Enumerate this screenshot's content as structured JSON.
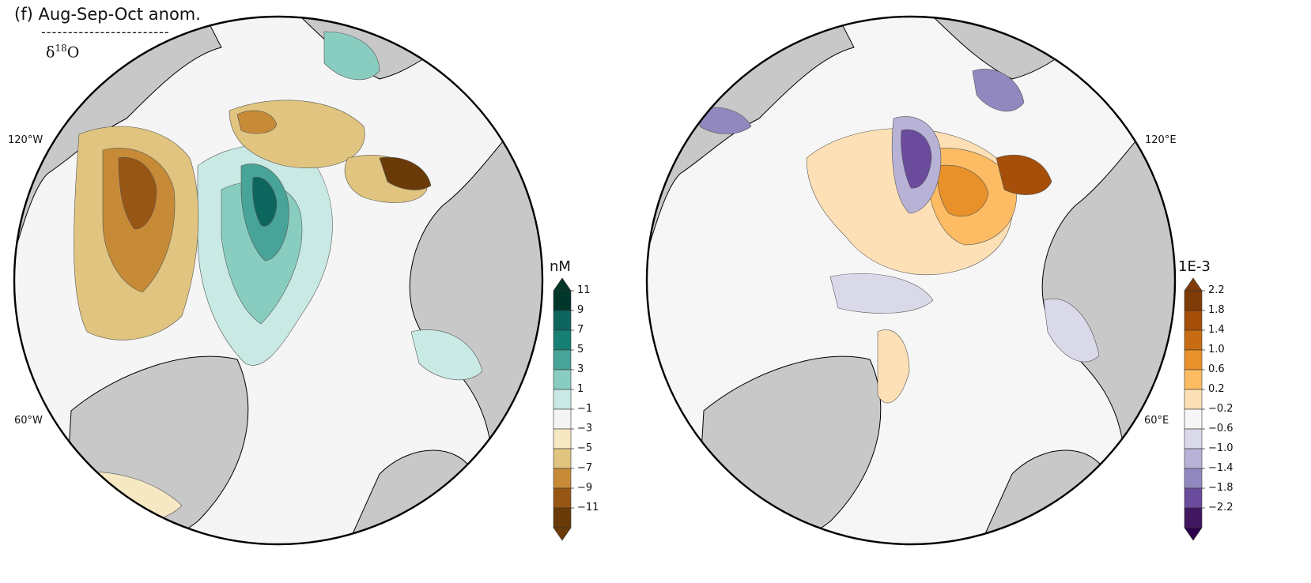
{
  "figure": {
    "panel_title": "(f) Aug-Sep-Oct anom.",
    "separator": "------------------------",
    "variable_prefix": "δ",
    "variable_sup": "18",
    "variable_suffix": "O"
  },
  "left_map": {
    "lon_labels": {
      "upper": "120°W",
      "lower": "60°W"
    },
    "colorbar": {
      "unit": "nM",
      "ticks": [
        "11",
        "9",
        "7",
        "5",
        "3",
        "1",
        "−1",
        "−3",
        "−5",
        "−7",
        "−9",
        "−11"
      ],
      "colors": [
        "#01362b",
        "#0c665e",
        "#158073",
        "#48a398",
        "#88cdc0",
        "#c9eae4",
        "#f4f4f4",
        "#f5e8c2",
        "#e0c47f",
        "#c78b38",
        "#985614",
        "#6a3a08"
      ],
      "extend_colors": {
        "top": "#01362b",
        "bottom": "#6a3a08"
      }
    }
  },
  "right_map": {
    "lon_labels": {
      "upper": "120°E",
      "lower": "60°E"
    },
    "colorbar": {
      "unit": "1E-3",
      "ticks": [
        "2.2",
        "1.8",
        "1.4",
        "1.0",
        "0.6",
        "0.2",
        "−0.2",
        "−0.6",
        "−1.0",
        "−1.4",
        "−1.8",
        "−2.2"
      ],
      "colors": [
        "#7f3b08",
        "#a64f0a",
        "#c86c13",
        "#e8912a",
        "#fdbc63",
        "#fee0b6",
        "#f6f6f6",
        "#d9d9ea",
        "#b8b2d6",
        "#9188bf",
        "#6a4b9c",
        "#41175f"
      ],
      "extend_colors": {
        "top": "#7f3b08",
        "bottom": "#2d004b"
      }
    }
  },
  "colors": {
    "land": "#c8c8c8",
    "ocean": "#f4f5f4",
    "coast": "#000000"
  }
}
